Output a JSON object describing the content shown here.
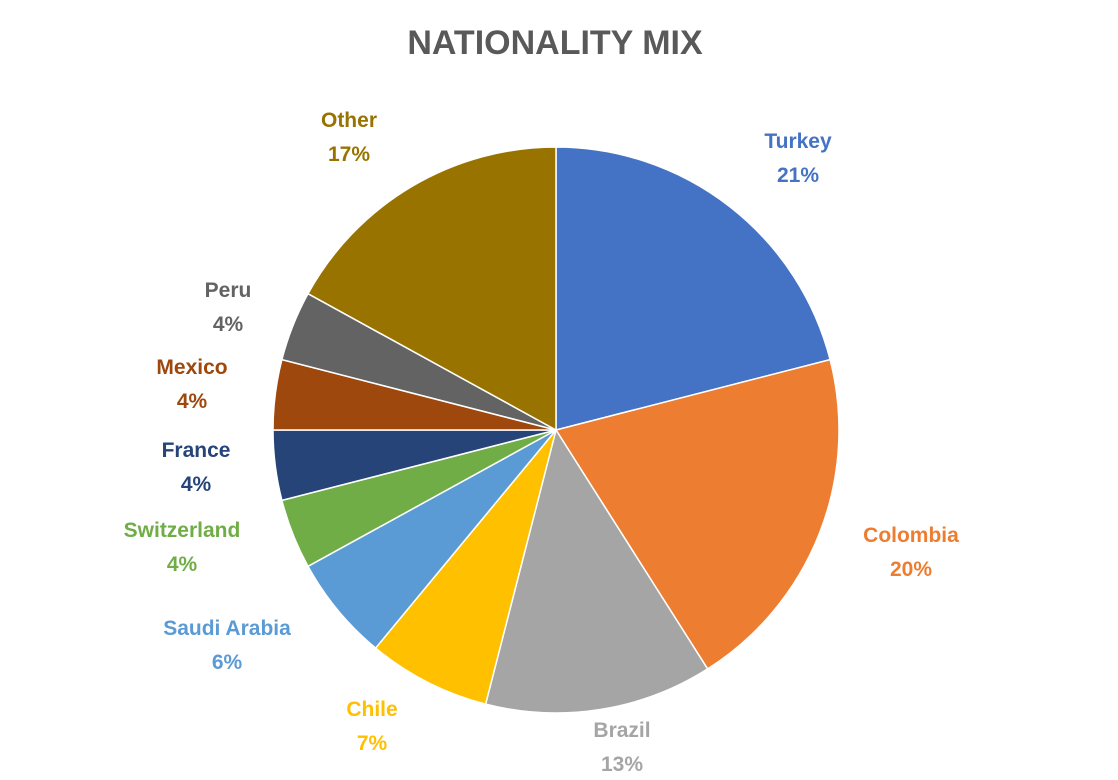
{
  "chart_data": {
    "type": "pie",
    "title": "NATIONALITY MIX",
    "start_angle_deg": 0,
    "direction": "clockwise",
    "slices": [
      {
        "label": "Turkey",
        "value": 21,
        "pct_label": "21%",
        "color": "#4472C4",
        "label_color": "#4472C4"
      },
      {
        "label": "Colombia",
        "value": 20,
        "pct_label": "20%",
        "color": "#ED7D31",
        "label_color": "#ED7D31"
      },
      {
        "label": "Brazil",
        "value": 13,
        "pct_label": "13%",
        "color": "#A5A5A5",
        "label_color": "#A5A5A5"
      },
      {
        "label": "Chile",
        "value": 7,
        "pct_label": "7%",
        "color": "#FFC000",
        "label_color": "#FFC000"
      },
      {
        "label": "Saudi Arabia",
        "value": 6,
        "pct_label": "6%",
        "color": "#5B9BD5",
        "label_color": "#5B9BD5"
      },
      {
        "label": "Switzerland",
        "value": 4,
        "pct_label": "4%",
        "color": "#70AD47",
        "label_color": "#70AD47"
      },
      {
        "label": "France",
        "value": 4,
        "pct_label": "4%",
        "color": "#264478",
        "label_color": "#264478"
      },
      {
        "label": "Mexico",
        "value": 4,
        "pct_label": "4%",
        "color": "#9E480E",
        "label_color": "#9E480E"
      },
      {
        "label": "Peru",
        "value": 4,
        "pct_label": "4%",
        "color": "#636363",
        "label_color": "#636363"
      },
      {
        "label": "Other",
        "value": 17,
        "pct_label": "17%",
        "color": "#997300",
        "label_color": "#997300"
      }
    ],
    "legend": "none"
  }
}
